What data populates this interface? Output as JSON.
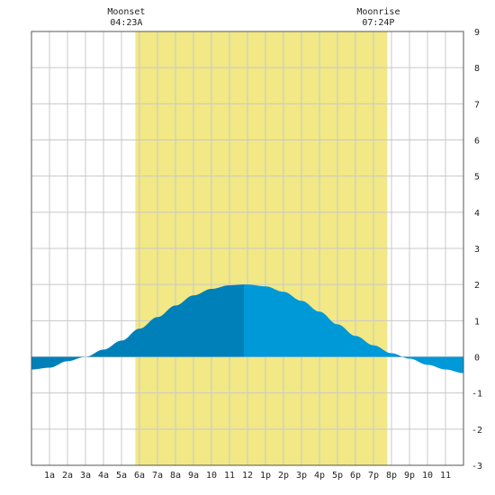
{
  "chart_data": {
    "type": "area",
    "title": "",
    "xlabel": "",
    "ylabel": "",
    "ylim": [
      -3,
      9
    ],
    "xlim": [
      0,
      24
    ],
    "grid": true,
    "x_tick_labels": [
      "1a",
      "2a",
      "3a",
      "4a",
      "5a",
      "6a",
      "7a",
      "8a",
      "9a",
      "10",
      "11",
      "12",
      "1p",
      "2p",
      "3p",
      "4p",
      "5p",
      "6p",
      "7p",
      "8p",
      "9p",
      "10",
      "11"
    ],
    "y_tick_labels": [
      "-3",
      "-2",
      "-1",
      "0",
      "1",
      "2",
      "3",
      "4",
      "5",
      "6",
      "7",
      "8",
      "9"
    ],
    "annotations": [
      {
        "label": "Moonset",
        "time": "04:23A",
        "hour": 5.77
      },
      {
        "label": "Moonrise",
        "time": "07:24P",
        "hour": 19.77
      }
    ],
    "daylight_band": {
      "start_hour": 5.77,
      "end_hour": 19.77
    },
    "split_hour": 11.8,
    "series": [
      {
        "x": [
          0,
          1,
          2,
          3,
          4,
          5,
          6,
          7,
          8,
          9,
          10,
          11,
          11.8,
          12,
          13,
          14,
          15,
          16,
          17,
          18,
          19,
          20,
          21,
          22,
          23,
          24
        ],
        "values": [
          -0.35,
          -0.3,
          -0.12,
          0.0,
          0.2,
          0.45,
          0.78,
          1.1,
          1.42,
          1.7,
          1.88,
          1.98,
          2.0,
          2.0,
          1.95,
          1.8,
          1.55,
          1.25,
          0.9,
          0.58,
          0.32,
          0.1,
          -0.05,
          -0.22,
          -0.35,
          -0.45
        ]
      }
    ]
  },
  "colors": {
    "background": "#ffffff",
    "daylight": "#f2e886",
    "grid": "#c8c8c8",
    "frame": "#555555",
    "tide_rising": "#0080b8",
    "tide_falling": "#0099d8",
    "text": "#222222"
  }
}
